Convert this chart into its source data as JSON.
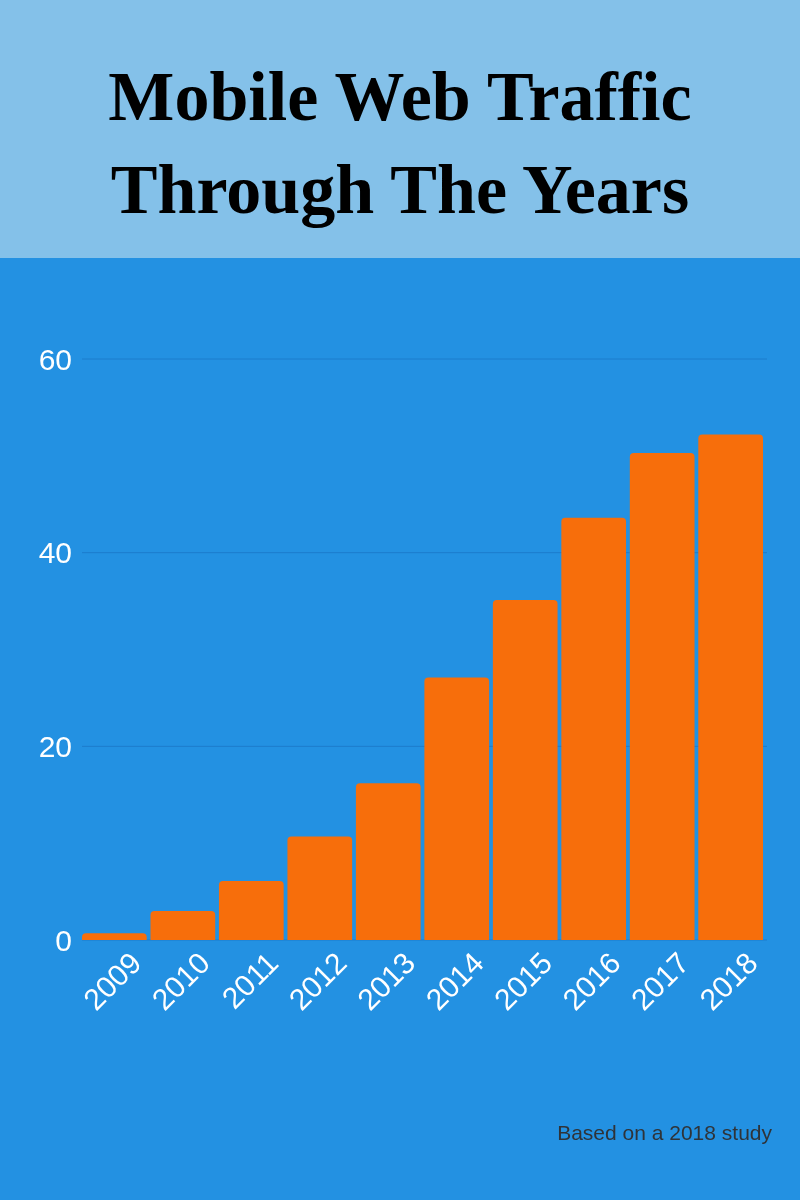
{
  "chart_data": {
    "type": "bar",
    "title": "Mobile Web Traffic Through The Years",
    "categories": [
      "2009",
      "2010",
      "2011",
      "2012",
      "2013",
      "2014",
      "2015",
      "2016",
      "2017",
      "2018"
    ],
    "values": [
      0.7,
      3,
      6.1,
      10.7,
      16.2,
      27.1,
      35.1,
      43.6,
      50.3,
      52.2
    ],
    "color": "#f76e0b",
    "ylim": [
      0,
      60
    ],
    "yticks": [
      0,
      20,
      40,
      60
    ],
    "grid": "y",
    "annotations": [
      "Based on a 2018 study"
    ]
  }
}
